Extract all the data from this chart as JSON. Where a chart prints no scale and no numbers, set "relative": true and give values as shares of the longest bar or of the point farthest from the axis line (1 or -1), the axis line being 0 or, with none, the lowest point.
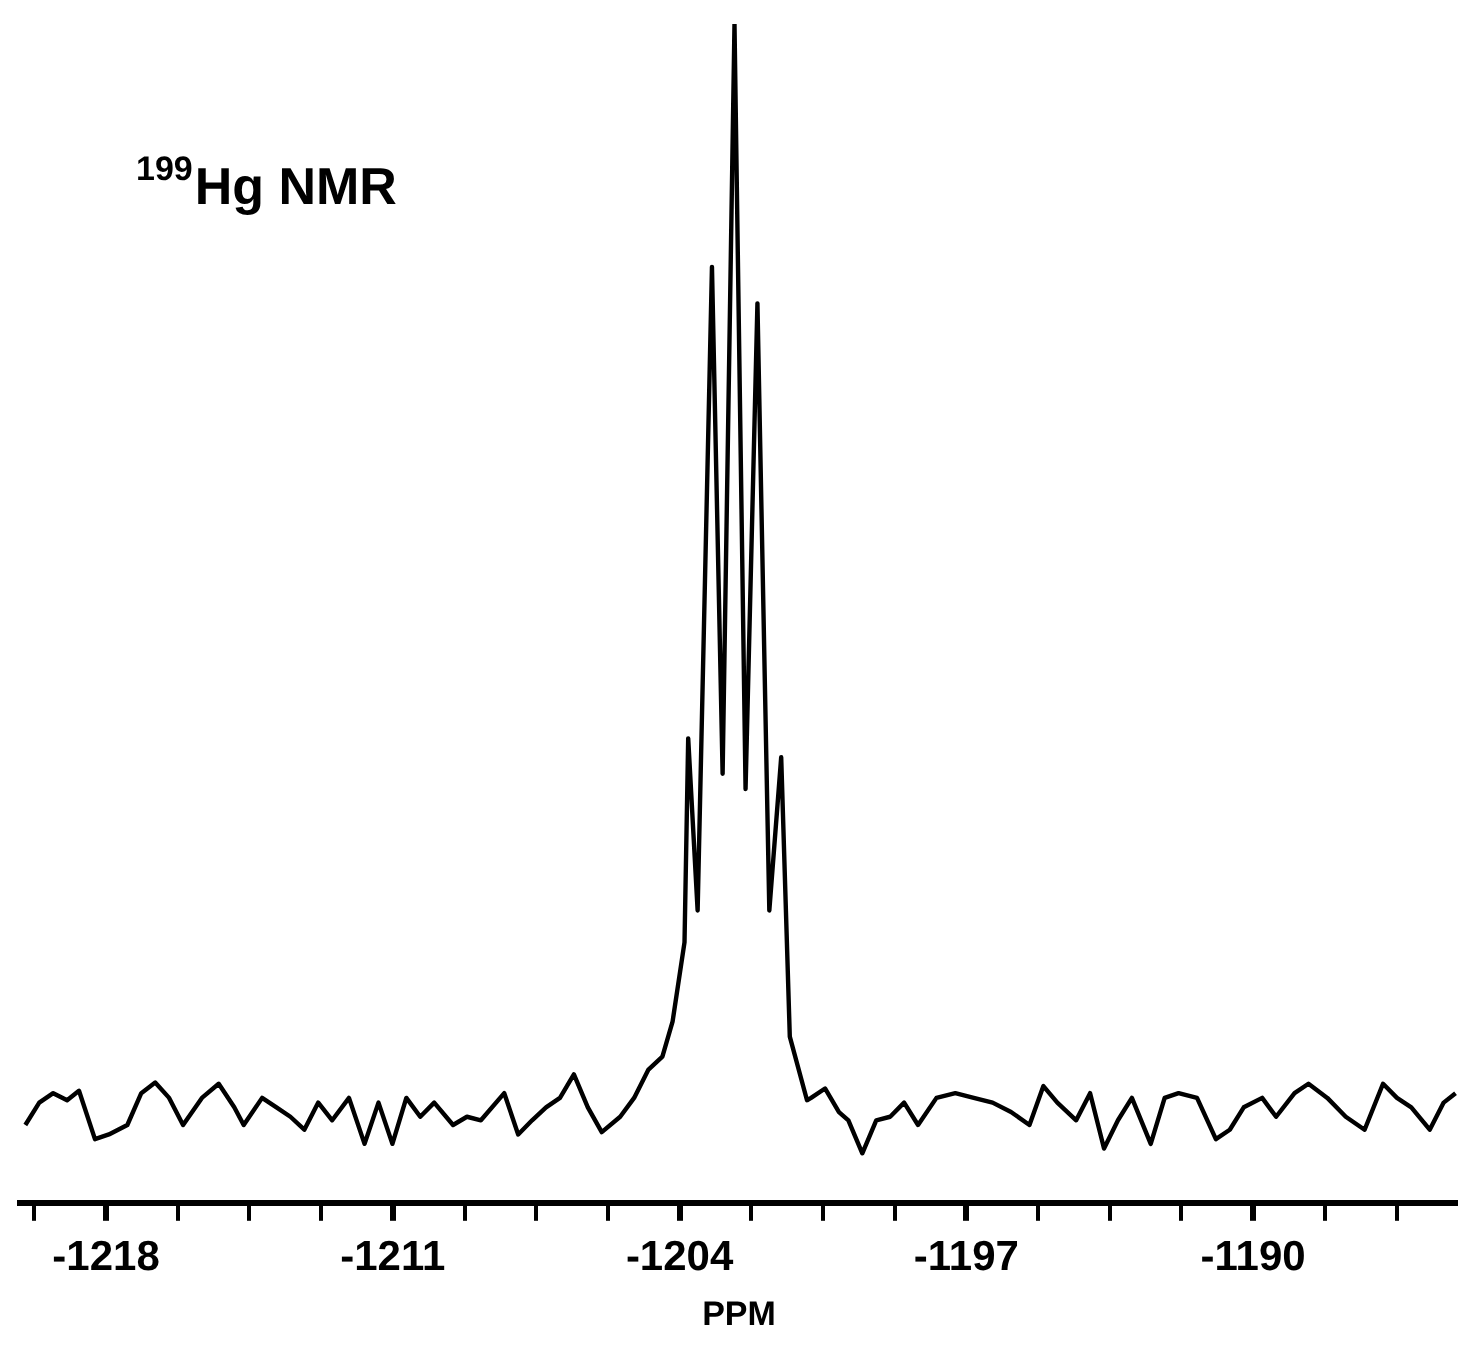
{
  "chart_data": {
    "type": "line",
    "title": "$^{199}$Hg NMR",
    "xlabel": "PPM",
    "relative": true,
    "xlim": [
      -1220.1,
      -1185.0
    ],
    "xticks": [
      {
        "value": -1219.75,
        "label": null
      },
      -1218,
      {
        "value": -1216.25,
        "label": null
      },
      {
        "value": -1214.5,
        "label": null
      },
      {
        "value": -1212.75,
        "label": null
      },
      -1211,
      {
        "value": -1209.25,
        "label": null
      },
      {
        "value": -1207.5,
        "label": null
      },
      {
        "value": -1205.75,
        "label": null
      },
      -1204,
      {
        "value": -1202.25,
        "label": null
      },
      {
        "value": -1200.5,
        "label": null
      },
      {
        "value": -1198.75,
        "label": null
      },
      -1197,
      {
        "value": -1195.25,
        "label": null
      },
      {
        "value": -1193.5,
        "label": null
      },
      {
        "value": -1191.75,
        "label": null
      },
      -1190,
      {
        "value": -1188.25,
        "label": null
      },
      {
        "value": -1186.5,
        "label": null
      }
    ],
    "series": [
      {
        "color": "#000000",
        "x": [
          -1219.97,
          -1219.63,
          -1219.29,
          -1218.95,
          -1218.66,
          -1218.27,
          -1217.93,
          -1217.48,
          -1217.14,
          -1216.8,
          -1216.46,
          -1216.12,
          -1215.66,
          -1215.25,
          -1214.87,
          -1214.64,
          -1214.19,
          -1213.84,
          -1213.5,
          -1213.16,
          -1212.82,
          -1212.48,
          -1212.07,
          -1211.69,
          -1211.35,
          -1211.01,
          -1210.67,
          -1210.33,
          -1209.99,
          -1209.53,
          -1209.19,
          -1208.85,
          -1208.28,
          -1207.94,
          -1207.6,
          -1207.26,
          -1206.92,
          -1206.58,
          -1206.24,
          -1205.9,
          -1205.45,
          -1205.11,
          -1204.76,
          -1204.42,
          -1204.17,
          -1203.88,
          -1203.79,
          -1203.56,
          -1203.21,
          -1202.95,
          -1202.66,
          -1202.39,
          -1202.1,
          -1201.81,
          -1201.52,
          -1201.31,
          -1200.89,
          -1200.79,
          -1200.45,
          -1200.11,
          -1199.88,
          -1199.54,
          -1199.2,
          -1198.86,
          -1198.52,
          -1198.18,
          -1197.73,
          -1197.27,
          -1196.82,
          -1196.36,
          -1195.91,
          -1195.46,
          -1195.12,
          -1194.78,
          -1194.32,
          -1193.98,
          -1193.64,
          -1193.3,
          -1192.96,
          -1192.5,
          -1192.16,
          -1191.82,
          -1191.37,
          -1190.91,
          -1190.57,
          -1190.23,
          -1189.78,
          -1189.44,
          -1188.99,
          -1188.65,
          -1188.19,
          -1187.74,
          -1187.28,
          -1186.83,
          -1186.49,
          -1186.14,
          -1185.69,
          -1185.35,
          -1185.06
        ],
        "values": [
          0.066,
          0.085,
          0.093,
          0.087,
          0.095,
          0.054,
          0.058,
          0.066,
          0.093,
          0.102,
          0.089,
          0.066,
          0.089,
          0.101,
          0.081,
          0.066,
          0.089,
          0.081,
          0.073,
          0.062,
          0.085,
          0.07,
          0.089,
          0.05,
          0.085,
          0.05,
          0.089,
          0.073,
          0.085,
          0.066,
          0.073,
          0.07,
          0.093,
          0.058,
          0.07,
          0.081,
          0.089,
          0.109,
          0.081,
          0.06,
          0.073,
          0.089,
          0.113,
          0.124,
          0.154,
          0.221,
          0.394,
          0.248,
          0.794,
          0.364,
          1,
          0.351,
          0.763,
          0.248,
          0.378,
          0.141,
          0.087,
          0.089,
          0.097,
          0.077,
          0.07,
          0.042,
          0.07,
          0.073,
          0.085,
          0.066,
          0.089,
          0.093,
          0.089,
          0.085,
          0.077,
          0.066,
          0.099,
          0.085,
          0.07,
          0.093,
          0.046,
          0.07,
          0.089,
          0.05,
          0.089,
          0.093,
          0.089,
          0.054,
          0.062,
          0.081,
          0.089,
          0.073,
          0.093,
          0.101,
          0.089,
          0.073,
          0.062,
          0.101,
          0.089,
          0.081,
          0.062,
          0.085,
          0.093
        ]
      }
    ]
  }
}
